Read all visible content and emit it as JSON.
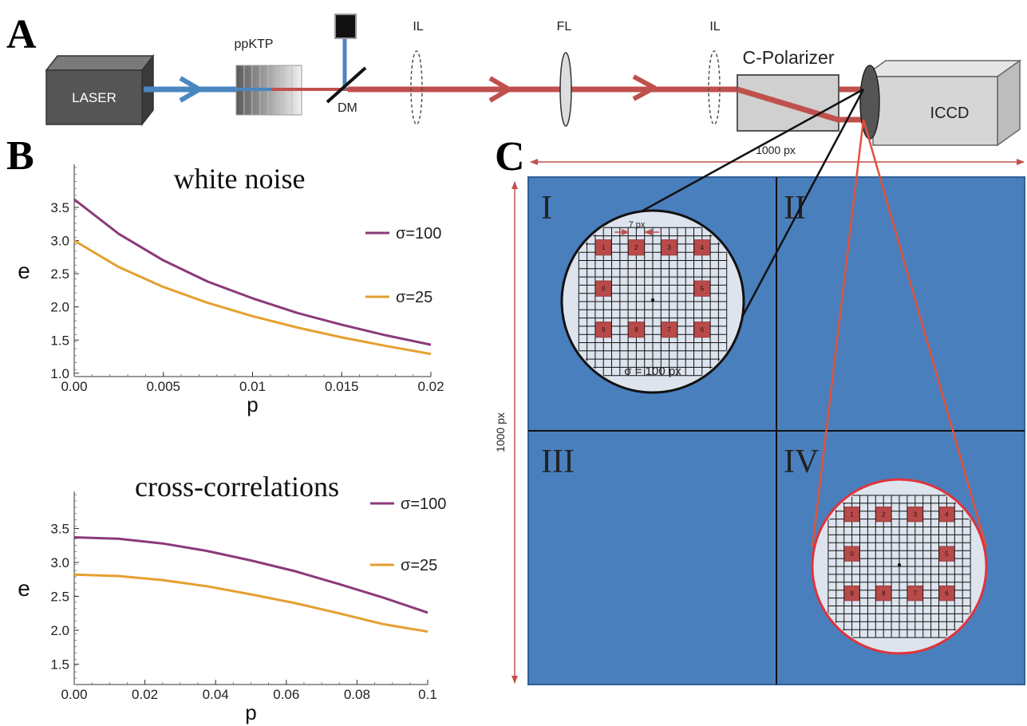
{
  "panels": {
    "a": "A",
    "b": "B",
    "c": "C"
  },
  "setup": {
    "laser": "LASER",
    "crystal": "ppKTP",
    "dichroic": "DM",
    "lens_il_1": "IL",
    "lens_fl": "FL",
    "lens_il_2": "IL",
    "polarizer": "C-Polarizer",
    "camera": "ICCD",
    "colors": {
      "pump": "#4a86c0",
      "downconverted": "#c0504d",
      "sensor": "#4a7fbd"
    }
  },
  "sensor": {
    "width_label": "1000 px",
    "height_label": "1000 px",
    "quadrants": [
      "I",
      "II",
      "III",
      "IV"
    ],
    "zoom_top": {
      "spacing_label": "7 px",
      "sigma_label": "σ = 100 px",
      "markers": [
        "1",
        "2",
        "3",
        "4",
        "0",
        "5",
        "9",
        "8",
        "7",
        "6"
      ]
    },
    "zoom_bottom": {
      "markers": [
        "1",
        "2",
        "3",
        "4",
        "0",
        "5",
        "9",
        "8",
        "7",
        "6"
      ]
    }
  },
  "chart_data": [
    {
      "type": "line",
      "title": "white noise",
      "xlabel": "p",
      "ylabel": "e",
      "xlim": [
        0,
        0.02
      ],
      "ylim": [
        0.95,
        4.1
      ],
      "xticks": [
        "0.00",
        "0.005",
        "0.01",
        "0.015",
        "0.02"
      ],
      "xtick_values": [
        0,
        0.005,
        0.01,
        0.015,
        0.02
      ],
      "yticks": [
        "1.0",
        "1.5",
        "2.0",
        "2.5",
        "3.0",
        "3.5"
      ],
      "ytick_values": [
        1.0,
        1.5,
        2.0,
        2.5,
        3.0,
        3.5
      ],
      "x": [
        0,
        0.0025,
        0.005,
        0.0075,
        0.01,
        0.0125,
        0.015,
        0.0175,
        0.02
      ],
      "series": [
        {
          "name": "σ=100",
          "color": "#8b3a7a",
          "values": [
            3.62,
            3.1,
            2.7,
            2.38,
            2.13,
            1.91,
            1.73,
            1.57,
            1.43
          ]
        },
        {
          "name": "σ=25",
          "color": "#e5a030",
          "values": [
            3.0,
            2.6,
            2.3,
            2.06,
            1.86,
            1.69,
            1.54,
            1.41,
            1.29
          ]
        }
      ],
      "legend": "right"
    },
    {
      "type": "line",
      "title": "cross-correlations",
      "xlabel": "p",
      "ylabel": "e",
      "xlim": [
        0,
        0.1
      ],
      "ylim": [
        1.2,
        4.0
      ],
      "xticks": [
        "0.00",
        "0.02",
        "0.04",
        "0.06",
        "0.08",
        "0.1"
      ],
      "xtick_values": [
        0,
        0.02,
        0.04,
        0.06,
        0.08,
        0.1
      ],
      "yticks": [
        "1.5",
        "2.0",
        "2.5",
        "3.0",
        "3.5"
      ],
      "ytick_values": [
        1.5,
        2.0,
        2.5,
        3.0,
        3.5
      ],
      "x": [
        0,
        0.0125,
        0.025,
        0.0375,
        0.05,
        0.0625,
        0.075,
        0.0875,
        0.1
      ],
      "series": [
        {
          "name": "σ=100",
          "color": "#8b3a7a",
          "values": [
            3.37,
            3.35,
            3.28,
            3.17,
            3.03,
            2.87,
            2.68,
            2.48,
            2.26
          ]
        },
        {
          "name": "σ=25",
          "color": "#e5a030",
          "values": [
            2.82,
            2.8,
            2.74,
            2.65,
            2.53,
            2.4,
            2.25,
            2.09,
            1.98
          ]
        }
      ],
      "legend": "right"
    }
  ]
}
